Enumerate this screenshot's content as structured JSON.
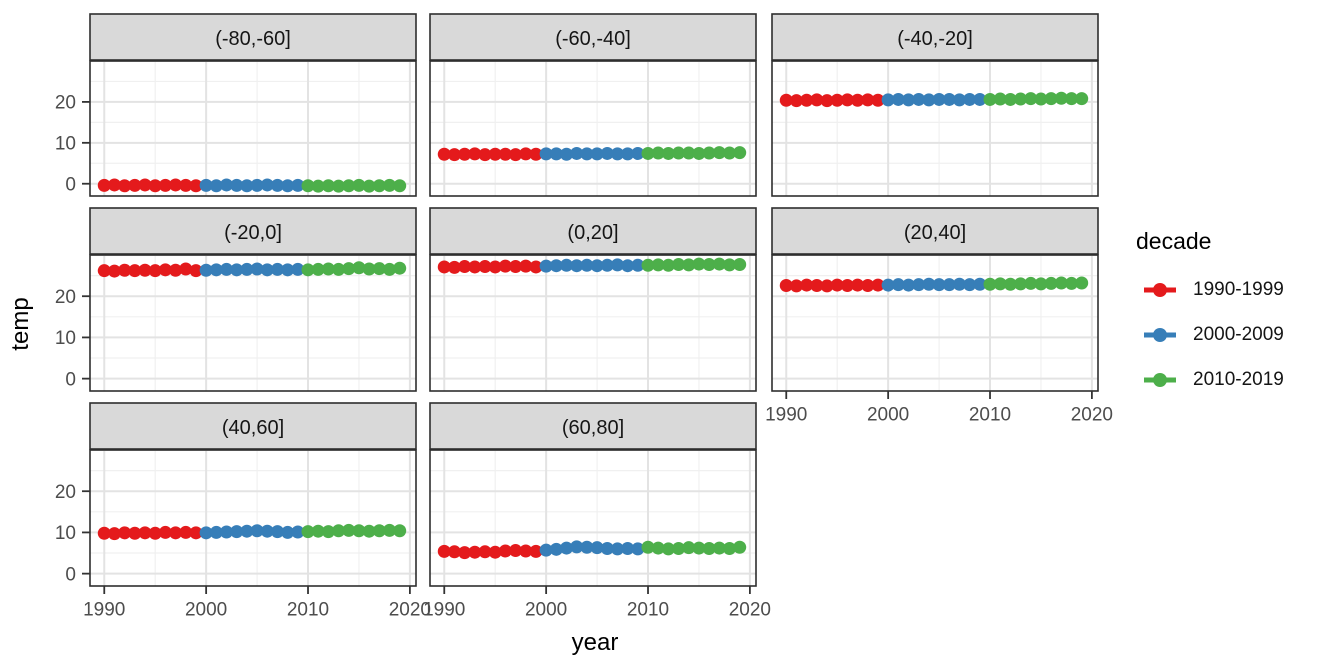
{
  "figure": {
    "y_axis_title": "temp",
    "x_axis_title": "year",
    "colors": {
      "strip_background": "#d9d9d9",
      "panel_border": "#2e2e2e",
      "grid_major": "#e3e3e3",
      "grid_minor": "#f0f0f0",
      "tick_mark": "#333333",
      "tick_label": "#4d4d4d",
      "strip_text": "#151515"
    }
  },
  "legend": {
    "title": "decade",
    "entries": [
      {
        "label": "1990-1999",
        "color": "#e41a1c"
      },
      {
        "label": "2000-2009",
        "color": "#377eb8"
      },
      {
        "label": "2010-2019",
        "color": "#4daf4a"
      }
    ]
  },
  "chart_data": {
    "type": "scatter",
    "title": "",
    "xlabel": "year",
    "ylabel": "temp",
    "legend_title": "decade",
    "legend_position": "right",
    "grid": true,
    "x_range": [
      1988.6,
      2020.6
    ],
    "y_range": [
      -3,
      30
    ],
    "x_tick_labels": [
      1990,
      2000,
      2010,
      2020
    ],
    "y_tick_labels": [
      0,
      10,
      20
    ],
    "x_grid_major": [
      1990,
      2000,
      2010,
      2020
    ],
    "x_grid_minor": [
      1995,
      2005,
      2015
    ],
    "y_grid_major": [
      0,
      10,
      20,
      30
    ],
    "y_grid_minor": [
      5,
      15,
      25
    ],
    "series_legend": [
      "1990-1999",
      "2000-2009",
      "2010-2019"
    ],
    "years": [
      1990,
      1991,
      1992,
      1993,
      1994,
      1995,
      1996,
      1997,
      1998,
      1999,
      2000,
      2001,
      2002,
      2003,
      2004,
      2005,
      2006,
      2007,
      2008,
      2009,
      2010,
      2011,
      2012,
      2013,
      2014,
      2015,
      2016,
      2017,
      2018,
      2019
    ],
    "facets": [
      {
        "label": "(-80,-60]",
        "values": [
          -0.4,
          -0.3,
          -0.5,
          -0.4,
          -0.3,
          -0.5,
          -0.4,
          -0.3,
          -0.4,
          -0.5,
          -0.4,
          -0.5,
          -0.3,
          -0.4,
          -0.5,
          -0.4,
          -0.3,
          -0.4,
          -0.5,
          -0.4,
          -0.5,
          -0.6,
          -0.5,
          -0.6,
          -0.5,
          -0.4,
          -0.6,
          -0.5,
          -0.4,
          -0.5
        ]
      },
      {
        "label": "(-60,-40]",
        "values": [
          7.2,
          7.1,
          7.2,
          7.3,
          7.1,
          7.2,
          7.2,
          7.1,
          7.3,
          7.2,
          7.3,
          7.3,
          7.2,
          7.4,
          7.3,
          7.3,
          7.4,
          7.3,
          7.3,
          7.4,
          7.4,
          7.5,
          7.4,
          7.5,
          7.5,
          7.4,
          7.5,
          7.6,
          7.5,
          7.6
        ]
      },
      {
        "label": "(-40,-20]",
        "values": [
          20.4,
          20.3,
          20.4,
          20.5,
          20.3,
          20.4,
          20.5,
          20.4,
          20.5,
          20.4,
          20.5,
          20.6,
          20.5,
          20.6,
          20.5,
          20.6,
          20.6,
          20.5,
          20.6,
          20.6,
          20.6,
          20.7,
          20.6,
          20.7,
          20.8,
          20.7,
          20.8,
          20.9,
          20.8,
          20.8
        ]
      },
      {
        "label": "(-20,0]",
        "values": [
          26.2,
          26.1,
          26.3,
          26.2,
          26.3,
          26.2,
          26.4,
          26.3,
          26.6,
          26.2,
          26.3,
          26.4,
          26.5,
          26.4,
          26.5,
          26.6,
          26.4,
          26.5,
          26.4,
          26.5,
          26.4,
          26.5,
          26.6,
          26.5,
          26.7,
          26.9,
          26.6,
          26.7,
          26.5,
          26.8
        ]
      },
      {
        "label": "(0,20]",
        "values": [
          27.1,
          27.0,
          27.2,
          27.1,
          27.2,
          27.1,
          27.3,
          27.2,
          27.3,
          27.1,
          27.3,
          27.4,
          27.5,
          27.4,
          27.5,
          27.4,
          27.5,
          27.6,
          27.4,
          27.5,
          27.5,
          27.6,
          27.5,
          27.7,
          27.6,
          27.8,
          27.7,
          27.8,
          27.6,
          27.7
        ]
      },
      {
        "label": "(20,40]",
        "values": [
          22.6,
          22.5,
          22.7,
          22.6,
          22.5,
          22.7,
          22.6,
          22.7,
          22.6,
          22.7,
          22.7,
          22.8,
          22.7,
          22.8,
          22.9,
          22.8,
          22.8,
          22.9,
          22.8,
          22.9,
          22.9,
          23.0,
          22.9,
          23.0,
          23.1,
          23.0,
          23.1,
          23.2,
          23.1,
          23.2
        ]
      },
      {
        "label": "(40,60]",
        "values": [
          9.8,
          9.7,
          9.9,
          9.8,
          9.9,
          9.8,
          10.0,
          9.9,
          10.0,
          9.9,
          9.9,
          10.0,
          10.1,
          10.2,
          10.3,
          10.4,
          10.3,
          10.2,
          10.0,
          10.1,
          10.2,
          10.3,
          10.2,
          10.4,
          10.5,
          10.4,
          10.3,
          10.4,
          10.5,
          10.4
        ]
      },
      {
        "label": "(60,80]",
        "values": [
          5.4,
          5.3,
          5.1,
          5.2,
          5.3,
          5.2,
          5.5,
          5.6,
          5.5,
          5.4,
          5.7,
          5.9,
          6.2,
          6.5,
          6.4,
          6.3,
          6.1,
          6.0,
          6.1,
          6.0,
          6.4,
          6.2,
          6.0,
          6.1,
          6.3,
          6.2,
          6.1,
          6.2,
          6.1,
          6.4
        ]
      }
    ]
  }
}
